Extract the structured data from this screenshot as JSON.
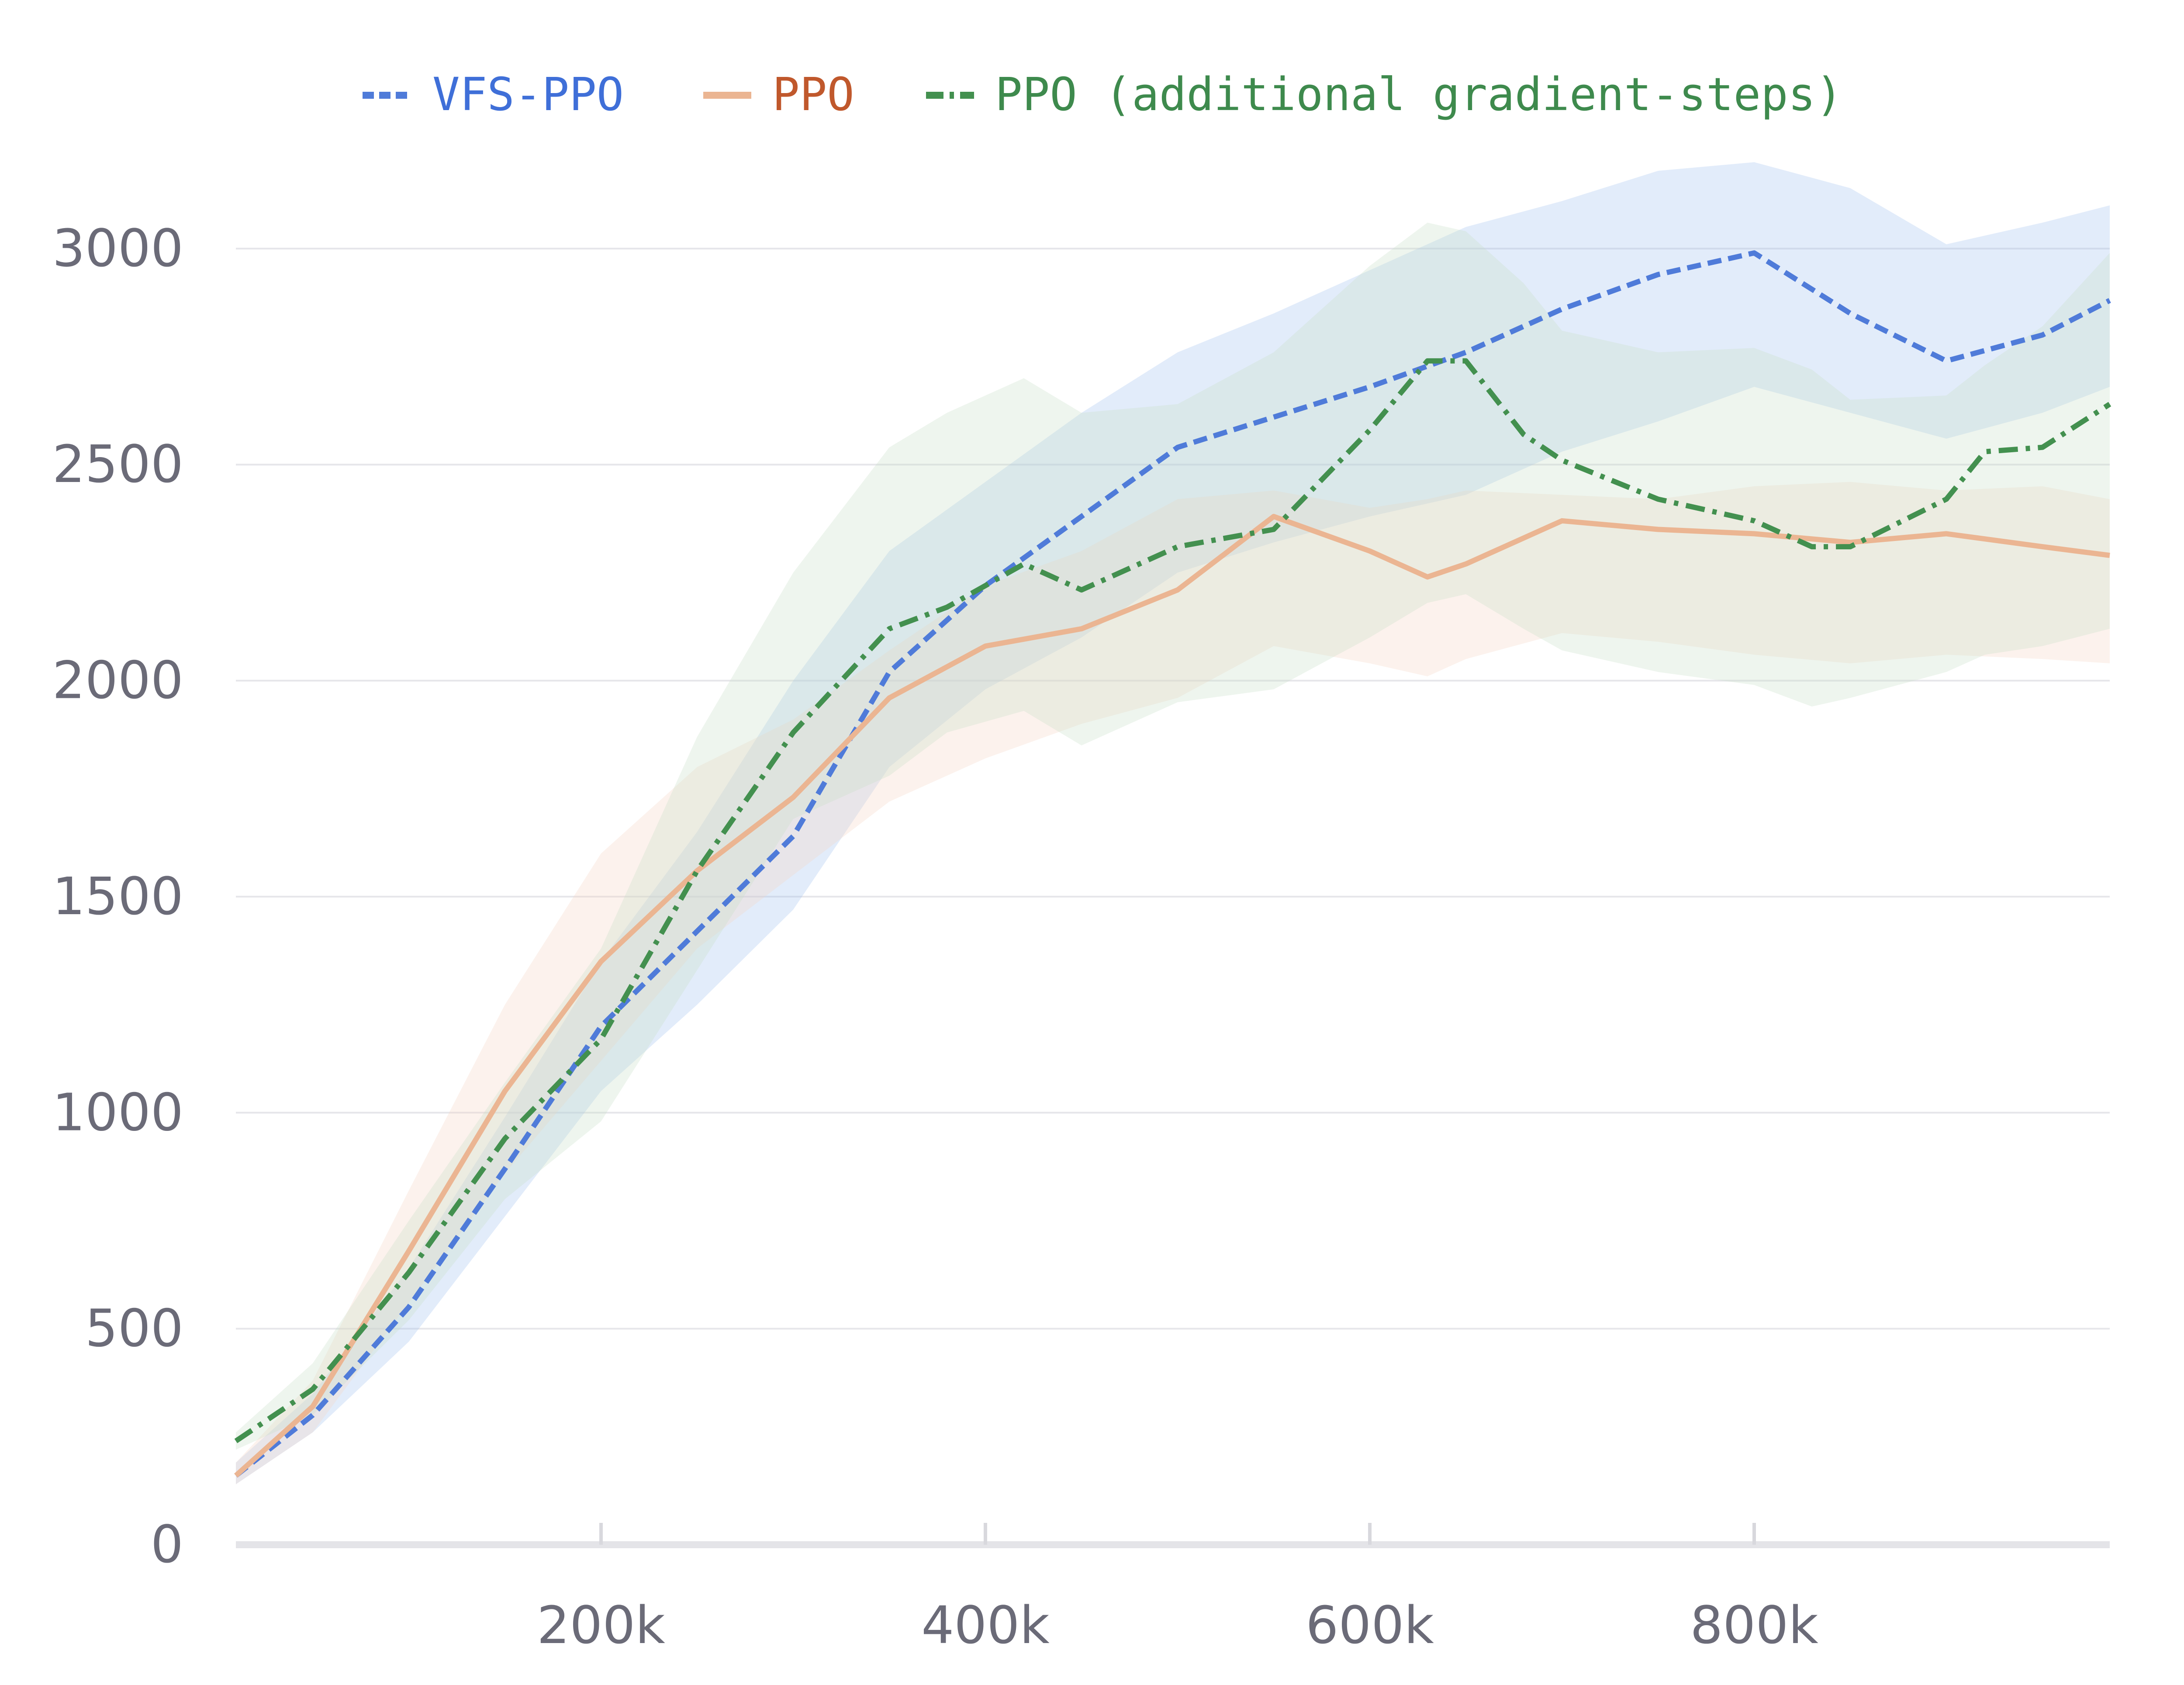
{
  "chart_data": {
    "type": "line",
    "title": "",
    "xlabel": "",
    "ylabel": "",
    "xlim": [
      10000,
      985000
    ],
    "ylim": [
      0,
      3100
    ],
    "xticks": [
      200000,
      400000,
      600000,
      800000
    ],
    "xtick_labels": [
      "200k",
      "400k",
      "600k",
      "800k"
    ],
    "yticks": [
      0,
      500,
      1000,
      1500,
      2000,
      2500,
      3000
    ],
    "ytick_labels": [
      "0",
      "500",
      "1000",
      "1500",
      "2000",
      "2500",
      "3000"
    ],
    "grid": "horizontal",
    "legend_position": "top-center",
    "series": [
      {
        "name": "VFS-PPO",
        "color": "#4f7bd9",
        "text_color": "#3f6fd8",
        "dash": "dashed",
        "band_color": "#9fc0f0",
        "x": [
          10000,
          50000,
          100000,
          150000,
          200000,
          250000,
          300000,
          350000,
          400000,
          450000,
          500000,
          550000,
          600000,
          650000,
          700000,
          750000,
          800000,
          850000,
          900000,
          950000,
          985000
        ],
        "y": [
          160,
          300,
          550,
          870,
          1200,
          1420,
          1640,
          2020,
          2220,
          2380,
          2540,
          2610,
          2680,
          2760,
          2860,
          2940,
          2990,
          2850,
          2740,
          2800,
          2880
        ],
        "lower": [
          140,
          260,
          470,
          760,
          1050,
          1250,
          1470,
          1800,
          1980,
          2100,
          2250,
          2320,
          2380,
          2430,
          2530,
          2600,
          2680,
          2620,
          2560,
          2620,
          2680
        ],
        "upper": [
          190,
          350,
          640,
          990,
          1350,
          1650,
          2000,
          2300,
          2460,
          2620,
          2760,
          2850,
          2950,
          3050,
          3110,
          3180,
          3200,
          3140,
          3010,
          3060,
          3100
        ]
      },
      {
        "name": "PPO",
        "color": "#ebb592",
        "text_color": "#c0582c",
        "dash": "solid",
        "band_color": "#f5d5c5",
        "x": [
          10000,
          50000,
          100000,
          150000,
          200000,
          250000,
          300000,
          350000,
          400000,
          450000,
          500000,
          550000,
          600000,
          630000,
          650000,
          700000,
          750000,
          800000,
          850000,
          900000,
          950000,
          985000
        ],
        "y": [
          160,
          320,
          680,
          1050,
          1350,
          1560,
          1730,
          1960,
          2080,
          2120,
          2210,
          2380,
          2300,
          2240,
          2270,
          2370,
          2350,
          2340,
          2320,
          2340,
          2310,
          2290
        ],
        "lower": [
          140,
          260,
          560,
          860,
          1120,
          1380,
          1550,
          1720,
          1820,
          1900,
          1960,
          2080,
          2040,
          2010,
          2050,
          2110,
          2090,
          2060,
          2040,
          2060,
          2050,
          2040
        ],
        "upper": [
          190,
          380,
          820,
          1250,
          1600,
          1800,
          1910,
          2070,
          2220,
          2300,
          2420,
          2440,
          2400,
          2420,
          2440,
          2430,
          2420,
          2450,
          2460,
          2440,
          2450,
          2420
        ]
      },
      {
        "name": "PPO (additional gradient-steps)",
        "color": "#43904f",
        "text_color": "#3e8a4d",
        "dash": "dashdot",
        "band_color": "#c6dfc6",
        "x": [
          10000,
          50000,
          100000,
          150000,
          200000,
          250000,
          300000,
          350000,
          380000,
          420000,
          450000,
          500000,
          550000,
          600000,
          630000,
          650000,
          680000,
          700000,
          750000,
          800000,
          830000,
          850000,
          900000,
          920000,
          950000,
          985000
        ],
        "y": [
          240,
          360,
          630,
          940,
          1170,
          1560,
          1880,
          2120,
          2170,
          2270,
          2210,
          2310,
          2350,
          2580,
          2740,
          2740,
          2570,
          2510,
          2420,
          2370,
          2310,
          2310,
          2420,
          2530,
          2540,
          2640
        ],
        "lower": [
          220,
          300,
          520,
          800,
          980,
          1330,
          1680,
          1780,
          1880,
          1930,
          1850,
          1950,
          1980,
          2100,
          2180,
          2200,
          2120,
          2070,
          2020,
          1990,
          1940,
          1960,
          2020,
          2060,
          2080,
          2120
        ],
        "upper": [
          260,
          420,
          750,
          1070,
          1380,
          1870,
          2250,
          2540,
          2620,
          2700,
          2620,
          2640,
          2760,
          2960,
          3060,
          3040,
          2920,
          2810,
          2760,
          2770,
          2720,
          2650,
          2660,
          2730,
          2820,
          2990
        ]
      }
    ]
  }
}
